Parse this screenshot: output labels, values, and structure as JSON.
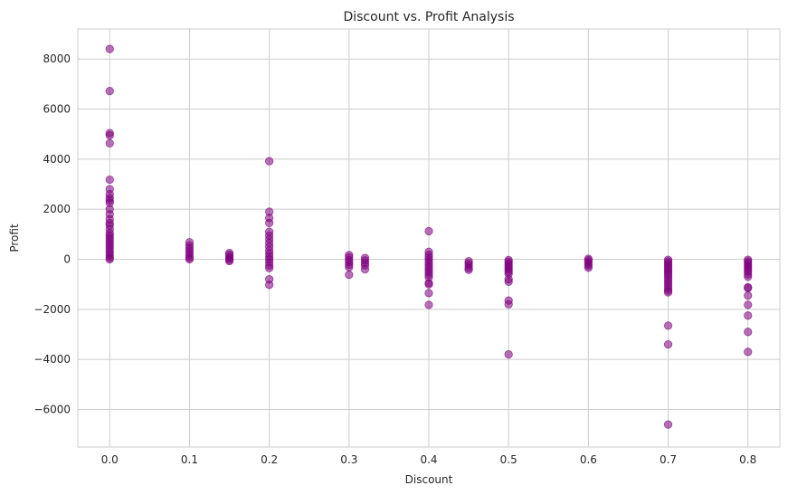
{
  "chart_data": {
    "type": "scatter",
    "title": "Discount vs. Profit Analysis",
    "xlabel": "Discount",
    "ylabel": "Profit",
    "xlim": [
      -0.04,
      0.84
    ],
    "ylim": [
      -7500,
      9200
    ],
    "xticks": [
      0.0,
      0.1,
      0.2,
      0.3,
      0.4,
      0.5,
      0.6,
      0.7,
      0.8
    ],
    "xtick_labels": [
      "0.0",
      "0.1",
      "0.2",
      "0.3",
      "0.4",
      "0.5",
      "0.6",
      "0.7",
      "0.8"
    ],
    "yticks": [
      -6000,
      -4000,
      -2000,
      0,
      2000,
      4000,
      6000,
      8000
    ],
    "ytick_labels": [
      "−6000",
      "−4000",
      "−2000",
      "0",
      "2000",
      "4000",
      "6000",
      "8000"
    ],
    "grid": true,
    "marker_color": "#800080",
    "marker_alpha": 0.55,
    "points": [
      {
        "x": 0.0,
        "y": 8400
      },
      {
        "x": 0.0,
        "y": 6720
      },
      {
        "x": 0.0,
        "y": 5040
      },
      {
        "x": 0.0,
        "y": 4950
      },
      {
        "x": 0.0,
        "y": 4630
      },
      {
        "x": 0.0,
        "y": 3180
      },
      {
        "x": 0.0,
        "y": 2800
      },
      {
        "x": 0.0,
        "y": 2600
      },
      {
        "x": 0.0,
        "y": 2450
      },
      {
        "x": 0.0,
        "y": 2350
      },
      {
        "x": 0.0,
        "y": 2250
      },
      {
        "x": 0.0,
        "y": 2000
      },
      {
        "x": 0.0,
        "y": 1800
      },
      {
        "x": 0.0,
        "y": 1600
      },
      {
        "x": 0.0,
        "y": 1450
      },
      {
        "x": 0.0,
        "y": 1350
      },
      {
        "x": 0.0,
        "y": 1200
      },
      {
        "x": 0.0,
        "y": 1050
      },
      {
        "x": 0.0,
        "y": 950
      },
      {
        "x": 0.0,
        "y": 850
      },
      {
        "x": 0.0,
        "y": 750
      },
      {
        "x": 0.0,
        "y": 650
      },
      {
        "x": 0.0,
        "y": 550
      },
      {
        "x": 0.0,
        "y": 450
      },
      {
        "x": 0.0,
        "y": 350
      },
      {
        "x": 0.0,
        "y": 250
      },
      {
        "x": 0.0,
        "y": 150
      },
      {
        "x": 0.0,
        "y": 60
      },
      {
        "x": 0.0,
        "y": 0
      },
      {
        "x": 0.1,
        "y": 680
      },
      {
        "x": 0.1,
        "y": 550
      },
      {
        "x": 0.1,
        "y": 450
      },
      {
        "x": 0.1,
        "y": 350
      },
      {
        "x": 0.1,
        "y": 250
      },
      {
        "x": 0.1,
        "y": 150
      },
      {
        "x": 0.1,
        "y": 60
      },
      {
        "x": 0.1,
        "y": 0
      },
      {
        "x": 0.15,
        "y": 250
      },
      {
        "x": 0.15,
        "y": 180
      },
      {
        "x": 0.15,
        "y": 100
      },
      {
        "x": 0.15,
        "y": 40
      },
      {
        "x": 0.15,
        "y": -20
      },
      {
        "x": 0.15,
        "y": -70
      },
      {
        "x": 0.2,
        "y": 3920
      },
      {
        "x": 0.2,
        "y": 1900
      },
      {
        "x": 0.2,
        "y": 1650
      },
      {
        "x": 0.2,
        "y": 1450
      },
      {
        "x": 0.2,
        "y": 1100
      },
      {
        "x": 0.2,
        "y": 950
      },
      {
        "x": 0.2,
        "y": 800
      },
      {
        "x": 0.2,
        "y": 650
      },
      {
        "x": 0.2,
        "y": 500
      },
      {
        "x": 0.2,
        "y": 350
      },
      {
        "x": 0.2,
        "y": 220
      },
      {
        "x": 0.2,
        "y": 100
      },
      {
        "x": 0.2,
        "y": 0
      },
      {
        "x": 0.2,
        "y": -120
      },
      {
        "x": 0.2,
        "y": -250
      },
      {
        "x": 0.2,
        "y": -350
      },
      {
        "x": 0.2,
        "y": -800
      },
      {
        "x": 0.2,
        "y": -1020
      },
      {
        "x": 0.3,
        "y": 170
      },
      {
        "x": 0.3,
        "y": 80
      },
      {
        "x": 0.3,
        "y": -30
      },
      {
        "x": 0.3,
        "y": -120
      },
      {
        "x": 0.3,
        "y": -220
      },
      {
        "x": 0.3,
        "y": -320
      },
      {
        "x": 0.3,
        "y": -620
      },
      {
        "x": 0.32,
        "y": 50
      },
      {
        "x": 0.32,
        "y": -50
      },
      {
        "x": 0.32,
        "y": -150
      },
      {
        "x": 0.32,
        "y": -250
      },
      {
        "x": 0.32,
        "y": -400
      },
      {
        "x": 0.4,
        "y": 1120
      },
      {
        "x": 0.4,
        "y": 300
      },
      {
        "x": 0.4,
        "y": 180
      },
      {
        "x": 0.4,
        "y": 80
      },
      {
        "x": 0.4,
        "y": -20
      },
      {
        "x": 0.4,
        "y": -120
      },
      {
        "x": 0.4,
        "y": -220
      },
      {
        "x": 0.4,
        "y": -320
      },
      {
        "x": 0.4,
        "y": -420
      },
      {
        "x": 0.4,
        "y": -520
      },
      {
        "x": 0.4,
        "y": -620
      },
      {
        "x": 0.4,
        "y": -720
      },
      {
        "x": 0.4,
        "y": -950
      },
      {
        "x": 0.4,
        "y": -1000
      },
      {
        "x": 0.4,
        "y": -1350
      },
      {
        "x": 0.4,
        "y": -1820
      },
      {
        "x": 0.45,
        "y": -80
      },
      {
        "x": 0.45,
        "y": -160
      },
      {
        "x": 0.45,
        "y": -250
      },
      {
        "x": 0.45,
        "y": -350
      },
      {
        "x": 0.45,
        "y": -420
      },
      {
        "x": 0.5,
        "y": -30
      },
      {
        "x": 0.5,
        "y": -100
      },
      {
        "x": 0.5,
        "y": -180
      },
      {
        "x": 0.5,
        "y": -260
      },
      {
        "x": 0.5,
        "y": -340
      },
      {
        "x": 0.5,
        "y": -420
      },
      {
        "x": 0.5,
        "y": -500
      },
      {
        "x": 0.5,
        "y": -580
      },
      {
        "x": 0.5,
        "y": -800
      },
      {
        "x": 0.5,
        "y": -900
      },
      {
        "x": 0.5,
        "y": -1650
      },
      {
        "x": 0.5,
        "y": -1800
      },
      {
        "x": 0.5,
        "y": -3800
      },
      {
        "x": 0.6,
        "y": 20
      },
      {
        "x": 0.6,
        "y": -40
      },
      {
        "x": 0.6,
        "y": -110
      },
      {
        "x": 0.6,
        "y": -180
      },
      {
        "x": 0.6,
        "y": -260
      },
      {
        "x": 0.6,
        "y": -340
      },
      {
        "x": 0.7,
        "y": -20
      },
      {
        "x": 0.7,
        "y": -90
      },
      {
        "x": 0.7,
        "y": -170
      },
      {
        "x": 0.7,
        "y": -250
      },
      {
        "x": 0.7,
        "y": -330
      },
      {
        "x": 0.7,
        "y": -410
      },
      {
        "x": 0.7,
        "y": -490
      },
      {
        "x": 0.7,
        "y": -570
      },
      {
        "x": 0.7,
        "y": -650
      },
      {
        "x": 0.7,
        "y": -750
      },
      {
        "x": 0.7,
        "y": -850
      },
      {
        "x": 0.7,
        "y": -950
      },
      {
        "x": 0.7,
        "y": -1050
      },
      {
        "x": 0.7,
        "y": -1150
      },
      {
        "x": 0.7,
        "y": -1250
      },
      {
        "x": 0.7,
        "y": -1320
      },
      {
        "x": 0.7,
        "y": -2650
      },
      {
        "x": 0.7,
        "y": -3400
      },
      {
        "x": 0.7,
        "y": -6600
      },
      {
        "x": 0.8,
        "y": -20
      },
      {
        "x": 0.8,
        "y": -90
      },
      {
        "x": 0.8,
        "y": -170
      },
      {
        "x": 0.8,
        "y": -250
      },
      {
        "x": 0.8,
        "y": -330
      },
      {
        "x": 0.8,
        "y": -410
      },
      {
        "x": 0.8,
        "y": -490
      },
      {
        "x": 0.8,
        "y": -600
      },
      {
        "x": 0.8,
        "y": -700
      },
      {
        "x": 0.8,
        "y": -1120
      },
      {
        "x": 0.8,
        "y": -1150
      },
      {
        "x": 0.8,
        "y": -1450
      },
      {
        "x": 0.8,
        "y": -1820
      },
      {
        "x": 0.8,
        "y": -2250
      },
      {
        "x": 0.8,
        "y": -2900
      },
      {
        "x": 0.8,
        "y": -3700
      }
    ]
  }
}
